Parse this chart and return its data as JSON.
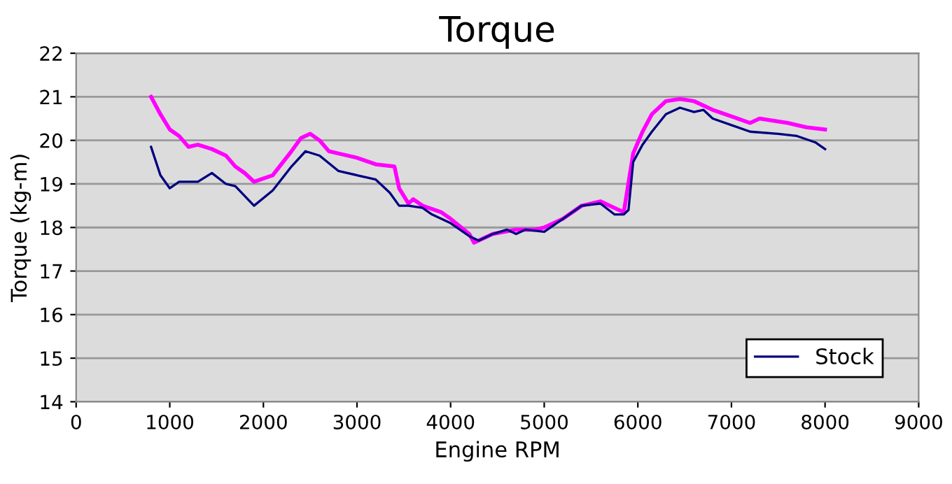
{
  "chart_data": {
    "type": "line",
    "title": "Torque",
    "xlabel": "Engine RPM",
    "ylabel": "Torque (kg-m)",
    "xlim": [
      0,
      9000
    ],
    "xticks": [
      0,
      1000,
      2000,
      3000,
      4000,
      5000,
      6000,
      7000,
      8000,
      9000
    ],
    "ylim": [
      14,
      22
    ],
    "yticks": [
      14,
      15,
      16,
      17,
      18,
      19,
      20,
      21,
      22
    ],
    "grid": "y",
    "legend": "bottom right",
    "marker": "none",
    "line_style": "solid",
    "series": [
      {
        "name": "Stock",
        "color": "#000080",
        "x": [
          800,
          900,
          1000,
          1100,
          1300,
          1450,
          1600,
          1700,
          1900,
          2100,
          2300,
          2450,
          2600,
          2800,
          3000,
          3200,
          3350,
          3450,
          3550,
          3700,
          3800,
          4000,
          4200,
          4300,
          4450,
          4600,
          4700,
          4800,
          5000,
          5200,
          5400,
          5600,
          5750,
          5850,
          5900,
          5950,
          6050,
          6150,
          6300,
          6450,
          6600,
          6700,
          6800,
          7000,
          7200,
          7500,
          7700,
          7900,
          8000
        ],
        "values": [
          19.85,
          19.2,
          18.9,
          19.05,
          19.05,
          19.25,
          19.0,
          18.95,
          18.5,
          18.85,
          19.4,
          19.75,
          19.65,
          19.3,
          19.2,
          19.1,
          18.8,
          18.5,
          18.5,
          18.45,
          18.3,
          18.1,
          17.8,
          17.7,
          17.85,
          17.95,
          17.85,
          17.95,
          17.9,
          18.2,
          18.5,
          18.55,
          18.3,
          18.3,
          18.4,
          19.5,
          19.9,
          20.2,
          20.6,
          20.75,
          20.65,
          20.7,
          20.5,
          20.35,
          20.2,
          20.15,
          20.1,
          19.95,
          19.8
        ]
      },
      {
        "color": "#ff00ff",
        "x": [
          800,
          900,
          1000,
          1100,
          1200,
          1300,
          1450,
          1600,
          1700,
          1800,
          1900,
          2100,
          2300,
          2400,
          2500,
          2600,
          2700,
          2800,
          3000,
          3200,
          3400,
          3450,
          3550,
          3600,
          3700,
          3900,
          4000,
          4200,
          4250,
          4450,
          4700,
          4900,
          5000,
          5200,
          5400,
          5600,
          5750,
          5850,
          5950,
          6050,
          6150,
          6300,
          6450,
          6600,
          6800,
          7000,
          7200,
          7300,
          7600,
          7800,
          8000
        ],
        "values": [
          21.0,
          20.6,
          20.25,
          20.1,
          19.85,
          19.9,
          19.8,
          19.65,
          19.4,
          19.25,
          19.05,
          19.2,
          19.75,
          20.05,
          20.15,
          20.0,
          19.75,
          19.7,
          19.6,
          19.45,
          19.4,
          18.9,
          18.55,
          18.65,
          18.5,
          18.35,
          18.2,
          17.85,
          17.65,
          17.85,
          17.95,
          17.95,
          18.0,
          18.2,
          18.5,
          18.6,
          18.45,
          18.35,
          19.7,
          20.2,
          20.6,
          20.9,
          20.95,
          20.9,
          20.7,
          20.55,
          20.4,
          20.5,
          20.4,
          20.3,
          20.25
        ]
      }
    ]
  }
}
